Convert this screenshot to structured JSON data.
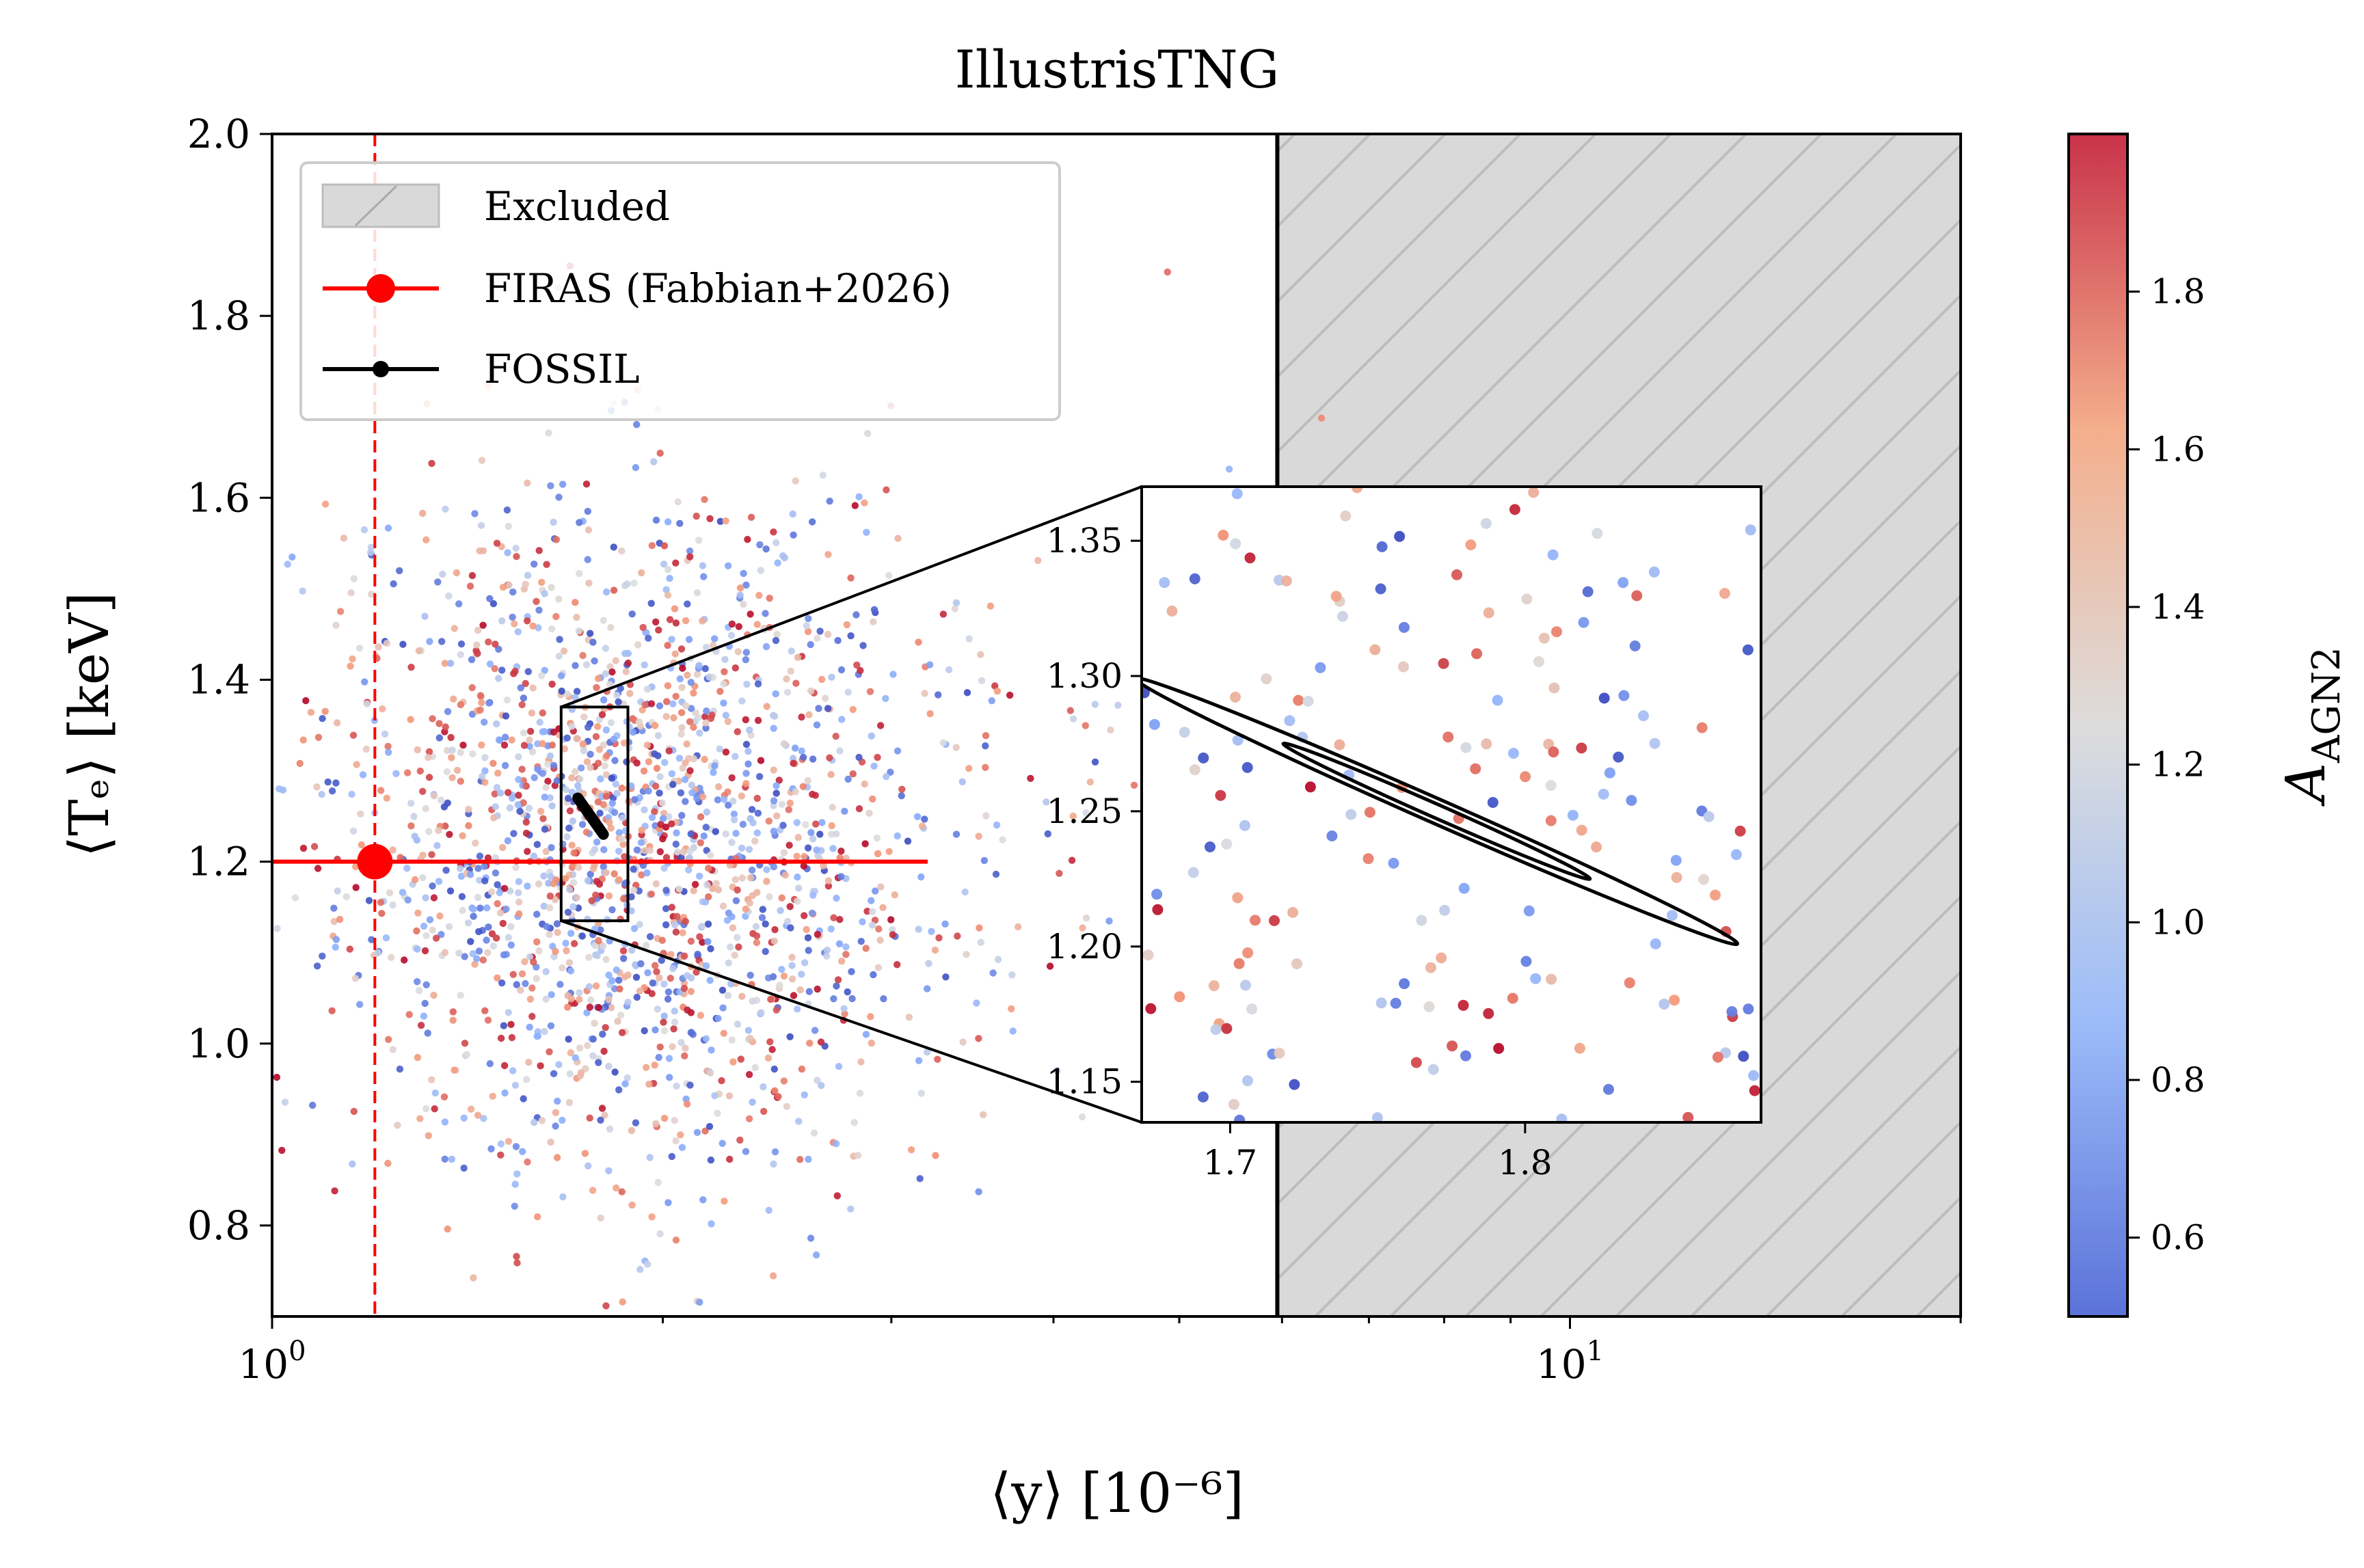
{
  "chart_data": {
    "type": "scatter",
    "title": "IllustrisTNG",
    "xlabel": "⟨y⟩ [10⁻⁶]",
    "ylabel": "⟨Tₑ⟩ [keV]",
    "xscale": "log",
    "xlim": [
      1.0,
      20.0
    ],
    "ylim": [
      0.7,
      2.0
    ],
    "x_ticks": [
      {
        "value": 1,
        "label_base": "10",
        "label_exp": "0"
      },
      {
        "value": 10,
        "label_base": "10",
        "label_exp": "1"
      }
    ],
    "y_ticks": [
      {
        "value": 0.8,
        "label": "0.8"
      },
      {
        "value": 1.0,
        "label": "1.0"
      },
      {
        "value": 1.2,
        "label": "1.2"
      },
      {
        "value": 1.4,
        "label": "1.4"
      },
      {
        "value": 1.6,
        "label": "1.6"
      },
      {
        "value": 1.8,
        "label": "1.8"
      },
      {
        "value": 2.0,
        "label": "2.0"
      }
    ],
    "legend": {
      "placement": "upper-left",
      "entries": [
        {
          "label": "Excluded",
          "kind": "patch-hatched",
          "color": "#d9d9d9"
        },
        {
          "label": "FIRAS (Fabbian+2026)",
          "kind": "line-marker",
          "color": "#ff0000"
        },
        {
          "label": "FOSSIL",
          "kind": "line-marker",
          "color": "#000000"
        }
      ]
    },
    "excluded_region": {
      "x_min": 5.95,
      "x_max": 20.0,
      "y_min": 0.7,
      "y_max": 2.0,
      "color": "#d9d9d9"
    },
    "firas": {
      "y_central": 1.2,
      "x_point": 1.2,
      "x_err_high": 3.2,
      "x_upper_limit": 1.2,
      "color": "#ff0000"
    },
    "fossil": {
      "x_center": 1.76,
      "y_center": 1.25,
      "color": "#000000"
    },
    "scatter": {
      "count": 2000,
      "x_log_mean": 0.27,
      "x_log_std": 0.11,
      "y_mean": 1.22,
      "y_std": 0.19,
      "color_range": [
        0.5,
        2.0
      ],
      "colormap": "coolwarm"
    },
    "inset": {
      "xlim": [
        1.67,
        1.88
      ],
      "ylim": [
        1.135,
        1.37
      ],
      "x_ticks": [
        {
          "value": 1.7,
          "label": "1.7"
        },
        {
          "value": 1.8,
          "label": "1.8"
        }
      ],
      "y_ticks": [
        {
          "value": 1.15,
          "label": "1.15"
        },
        {
          "value": 1.2,
          "label": "1.20"
        },
        {
          "value": 1.25,
          "label": "1.25"
        },
        {
          "value": 1.3,
          "label": "1.30"
        },
        {
          "value": 1.35,
          "label": "1.35"
        }
      ],
      "contour_outer": {
        "cx": 1.77,
        "cy": 1.25,
        "semi_major_x": 0.102,
        "semi_major_y": 0.049,
        "semi_minor": 0.0045
      },
      "contour_inner": {
        "cx": 1.77,
        "cy": 1.25,
        "semi_major_x": 0.052,
        "semi_major_y": 0.025,
        "semi_minor": 0.0025
      }
    },
    "colorbar": {
      "label_base": "A",
      "label_sub": "AGN2",
      "range": [
        0.5,
        2.0
      ],
      "ticks": [
        {
          "value": 0.6,
          "label": "0.6"
        },
        {
          "value": 0.8,
          "label": "0.8"
        },
        {
          "value": 1.0,
          "label": "1.0"
        },
        {
          "value": 1.2,
          "label": "1.2"
        },
        {
          "value": 1.4,
          "label": "1.4"
        },
        {
          "value": 1.6,
          "label": "1.6"
        },
        {
          "value": 1.8,
          "label": "1.8"
        }
      ],
      "colormap": "coolwarm"
    }
  }
}
